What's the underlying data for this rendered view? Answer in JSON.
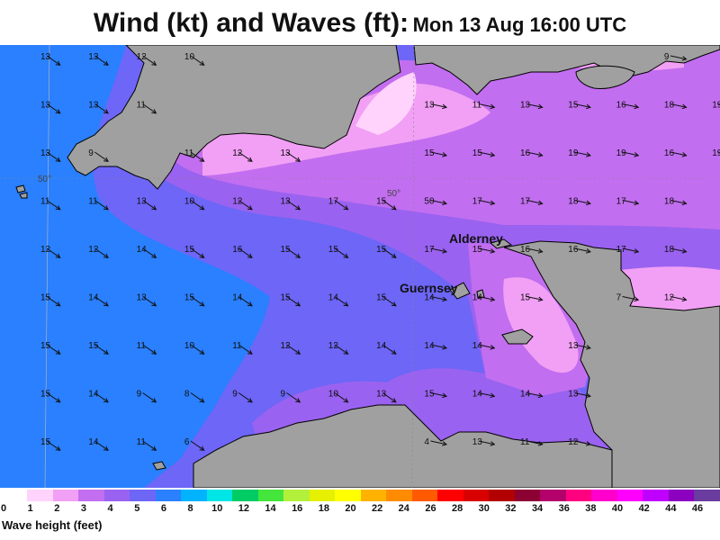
{
  "title": {
    "main": "Wind (kt) and Waves (ft):",
    "sub": "Mon 13 Aug 16:00 UTC"
  },
  "places": [
    {
      "id": "alderney",
      "label": "Alderney"
    },
    {
      "id": "guernsey",
      "label": "Guernsey"
    }
  ],
  "latitude_labels": [
    "50°",
    "50°"
  ],
  "wind_grid": {
    "rows": [
      [
        13,
        13,
        12,
        10,
        null,
        null,
        null,
        null,
        null,
        null,
        null,
        null,
        null,
        9,
        null
      ],
      [
        13,
        13,
        11,
        null,
        null,
        null,
        null,
        null,
        13,
        11,
        13,
        15,
        16,
        18,
        19
      ],
      [
        13,
        9,
        null,
        11,
        12,
        13,
        null,
        null,
        15,
        15,
        16,
        19,
        19,
        16,
        19
      ],
      [
        11,
        11,
        13,
        10,
        12,
        13,
        17,
        15,
        50,
        17,
        17,
        18,
        17,
        18,
        null
      ],
      [
        12,
        12,
        14,
        15,
        16,
        15,
        15,
        15,
        17,
        15,
        16,
        16,
        17,
        18,
        null
      ],
      [
        15,
        14,
        13,
        15,
        14,
        15,
        14,
        15,
        14,
        14,
        15,
        null,
        7,
        12,
        null
      ],
      [
        15,
        15,
        11,
        10,
        11,
        12,
        12,
        14,
        14,
        14,
        null,
        13,
        null,
        null,
        null
      ],
      [
        15,
        14,
        9,
        8,
        9,
        9,
        10,
        13,
        15,
        14,
        14,
        13,
        null,
        null,
        null
      ],
      [
        15,
        14,
        11,
        6,
        null,
        null,
        null,
        null,
        4,
        13,
        11,
        12,
        null,
        null,
        null
      ]
    ]
  },
  "legend": {
    "title": "Wave height (feet)",
    "ticks": [
      "0",
      "1",
      "2",
      "3",
      "4",
      "5",
      "6",
      "8",
      "10",
      "12",
      "14",
      "16",
      "18",
      "20",
      "22",
      "24",
      "26",
      "28",
      "30",
      "32",
      "34",
      "36",
      "38",
      "40",
      "42",
      "44",
      "46"
    ],
    "colors": [
      "#ffd3fb",
      "#f2a0f5",
      "#c26ef0",
      "#9a62f0",
      "#6d66f7",
      "#2a80ff",
      "#00b3ff",
      "#00e6e6",
      "#00cc66",
      "#44e63c",
      "#b3f03c",
      "#e6f000",
      "#ffff00",
      "#ffb300",
      "#ff8c00",
      "#ff5a00",
      "#ff0000",
      "#d90000",
      "#b30000",
      "#8c0033",
      "#b3006b",
      "#ff0080",
      "#ff00cc",
      "#ff00ff",
      "#c000ff",
      "#8c00c0",
      "#6a3ca0"
    ]
  },
  "colors": {
    "land": "#a0a0a0",
    "coast": "#000000"
  }
}
